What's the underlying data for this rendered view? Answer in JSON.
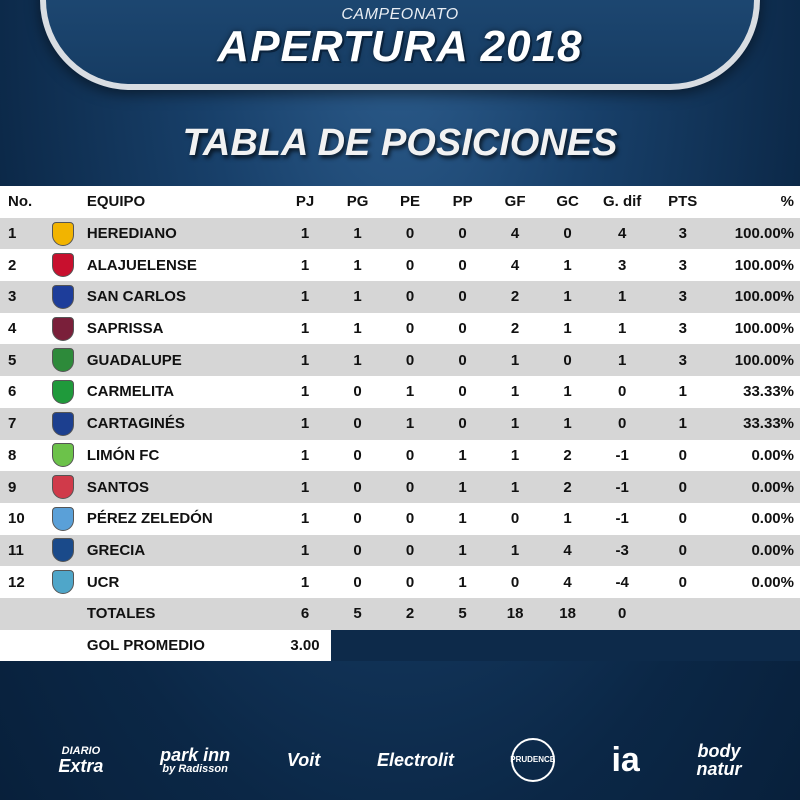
{
  "header": {
    "top_label": "CAMPEONATO",
    "title": "APERTURA 2018",
    "subtitle": "TABLA DE POSICIONES"
  },
  "table": {
    "columns": [
      "No.",
      "",
      "EQUIPO",
      "PJ",
      "PG",
      "PE",
      "PP",
      "GF",
      "GC",
      "G. dif",
      "PTS",
      "%"
    ],
    "rows": [
      {
        "no": "1",
        "team": "HEREDIANO",
        "pj": "1",
        "pg": "1",
        "pe": "0",
        "pp": "0",
        "gf": "4",
        "gc": "0",
        "gdif": "4",
        "pts": "3",
        "pct": "100.00%",
        "logo_color": "#f2b400",
        "logo_icon": "herediano-crest-icon"
      },
      {
        "no": "2",
        "team": "ALAJUELENSE",
        "pj": "1",
        "pg": "1",
        "pe": "0",
        "pp": "0",
        "gf": "4",
        "gc": "1",
        "gdif": "3",
        "pts": "3",
        "pct": "100.00%",
        "logo_color": "#c8102e",
        "logo_icon": "alajuelense-crest-icon"
      },
      {
        "no": "3",
        "team": "SAN CARLOS",
        "pj": "1",
        "pg": "1",
        "pe": "0",
        "pp": "0",
        "gf": "2",
        "gc": "1",
        "gdif": "1",
        "pts": "3",
        "pct": "100.00%",
        "logo_color": "#1d3d9a",
        "logo_icon": "san-carlos-crest-icon"
      },
      {
        "no": "4",
        "team": "SAPRISSA",
        "pj": "1",
        "pg": "1",
        "pe": "0",
        "pp": "0",
        "gf": "2",
        "gc": "1",
        "gdif": "1",
        "pts": "3",
        "pct": "100.00%",
        "logo_color": "#7a1f3a",
        "logo_icon": "saprissa-crest-icon"
      },
      {
        "no": "5",
        "team": "GUADALUPE",
        "pj": "1",
        "pg": "1",
        "pe": "0",
        "pp": "0",
        "gf": "1",
        "gc": "0",
        "gdif": "1",
        "pts": "3",
        "pct": "100.00%",
        "logo_color": "#2d8a3a",
        "logo_icon": "guadalupe-crest-icon"
      },
      {
        "no": "6",
        "team": "CARMELITA",
        "pj": "1",
        "pg": "0",
        "pe": "1",
        "pp": "0",
        "gf": "1",
        "gc": "1",
        "gdif": "0",
        "pts": "1",
        "pct": "33.33%",
        "logo_color": "#1f9a3b",
        "logo_icon": "carmelita-crest-icon"
      },
      {
        "no": "7",
        "team": "CARTAGINÉS",
        "pj": "1",
        "pg": "0",
        "pe": "1",
        "pp": "0",
        "gf": "1",
        "gc": "1",
        "gdif": "0",
        "pts": "1",
        "pct": "33.33%",
        "logo_color": "#1c3f8f",
        "logo_icon": "cartagines-crest-icon"
      },
      {
        "no": "8",
        "team": "LIMÓN FC",
        "pj": "1",
        "pg": "0",
        "pe": "0",
        "pp": "1",
        "gf": "1",
        "gc": "2",
        "gdif": "-1",
        "pts": "0",
        "pct": "0.00%",
        "logo_color": "#6cc24a",
        "logo_icon": "limon-crest-icon"
      },
      {
        "no": "9",
        "team": "SANTOS",
        "pj": "1",
        "pg": "0",
        "pe": "0",
        "pp": "1",
        "gf": "1",
        "gc": "2",
        "gdif": "-1",
        "pts": "0",
        "pct": "0.00%",
        "logo_color": "#d03a4a",
        "logo_icon": "santos-crest-icon"
      },
      {
        "no": "10",
        "team": "PÉREZ ZELEDÓN",
        "pj": "1",
        "pg": "0",
        "pe": "0",
        "pp": "1",
        "gf": "0",
        "gc": "1",
        "gdif": "-1",
        "pts": "0",
        "pct": "0.00%",
        "logo_color": "#5aa0d8",
        "logo_icon": "perez-zeledon-crest-icon"
      },
      {
        "no": "11",
        "team": "GRECIA",
        "pj": "1",
        "pg": "0",
        "pe": "0",
        "pp": "1",
        "gf": "1",
        "gc": "4",
        "gdif": "-3",
        "pts": "0",
        "pct": "0.00%",
        "logo_color": "#1a4a8a",
        "logo_icon": "grecia-crest-icon"
      },
      {
        "no": "12",
        "team": "UCR",
        "pj": "1",
        "pg": "0",
        "pe": "0",
        "pp": "1",
        "gf": "0",
        "gc": "4",
        "gdif": "-4",
        "pts": "0",
        "pct": "0.00%",
        "logo_color": "#4fa6c9",
        "logo_icon": "ucr-crest-icon"
      }
    ],
    "totals": {
      "label": "TOTALES",
      "pj": "6",
      "pg": "5",
      "pe": "2",
      "pp": "5",
      "gf": "18",
      "gc": "18",
      "gdif": "0"
    },
    "average": {
      "label": "GOL PROMEDIO",
      "value": "3.00"
    }
  },
  "sponsors": {
    "diario_top": "DIARIO",
    "diario_main": "Extra",
    "parkinn": "park inn",
    "parkinn_small": "by Radisson",
    "voit": "Voit",
    "electrolit": "Electrolit",
    "prudence": "PRUDENCE",
    "ia": "ia",
    "body": "body",
    "natur": "natur"
  },
  "colors": {
    "background": "#0d2a4a",
    "banner": "#1f4a75",
    "row_alt": "#d6d6d6"
  }
}
